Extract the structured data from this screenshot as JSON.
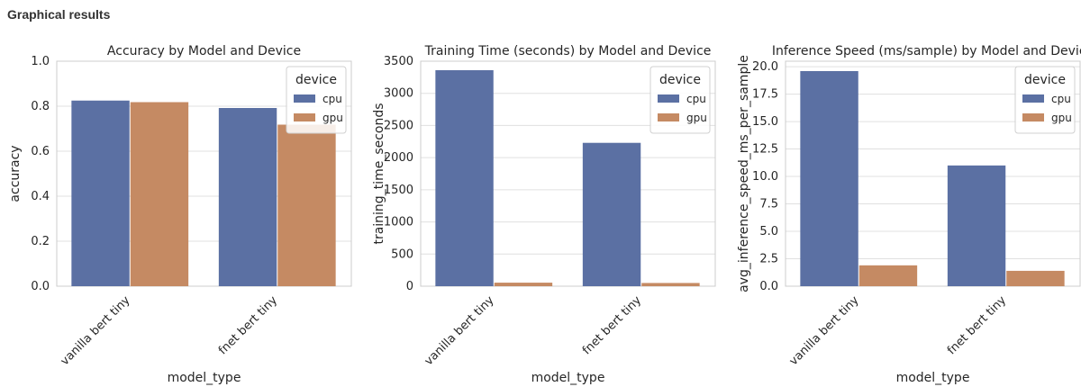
{
  "page": {
    "heading": "Graphical results"
  },
  "colors": {
    "cpu": "#5b70a3",
    "gpu": "#c58a63",
    "grid": "#e0e0e0",
    "spine": "#cccccc"
  },
  "chart_data": [
    {
      "type": "bar",
      "title": "Accuracy by Model and Device",
      "xlabel": "model_type",
      "ylabel": "accuracy",
      "categories": [
        "vanilla bert tiny",
        "fnet bert tiny"
      ],
      "series": [
        {
          "name": "cpu",
          "values": [
            0.825,
            0.792
          ]
        },
        {
          "name": "gpu",
          "values": [
            0.818,
            0.718
          ]
        }
      ],
      "ylim": [
        0,
        1.0
      ],
      "yticks": [
        "0.0",
        "0.2",
        "0.4",
        "0.6",
        "0.8",
        "1.0"
      ],
      "legend": {
        "title": "device",
        "placement": "upper-right"
      },
      "grid": true
    },
    {
      "type": "bar",
      "title": "Training Time (seconds) by Model and Device",
      "xlabel": "model_type",
      "ylabel": "training_time_seconds",
      "categories": [
        "vanilla bert tiny",
        "fnet bert tiny"
      ],
      "series": [
        {
          "name": "cpu",
          "values": [
            3360,
            2230
          ]
        },
        {
          "name": "gpu",
          "values": [
            55,
            50
          ]
        }
      ],
      "ylim": [
        0,
        3500
      ],
      "yticks": [
        "0",
        "500",
        "1000",
        "1500",
        "2000",
        "2500",
        "3000",
        "3500"
      ],
      "legend": {
        "title": "device",
        "placement": "upper-right"
      },
      "grid": true
    },
    {
      "type": "bar",
      "title": "Inference Speed (ms/sample) by Model and Device",
      "xlabel": "model_type",
      "ylabel": "avg_inference_speed_ms_per_sample",
      "categories": [
        "vanilla bert tiny",
        "fnet bert tiny"
      ],
      "series": [
        {
          "name": "cpu",
          "values": [
            19.6,
            11.0
          ]
        },
        {
          "name": "gpu",
          "values": [
            1.9,
            1.4
          ]
        }
      ],
      "ylim": [
        0,
        20.5
      ],
      "yticks": [
        "0.0",
        "2.5",
        "5.0",
        "7.5",
        "10.0",
        "12.5",
        "15.0",
        "17.5",
        "20.0"
      ],
      "legend": {
        "title": "device",
        "placement": "upper-right"
      },
      "grid": true
    }
  ]
}
